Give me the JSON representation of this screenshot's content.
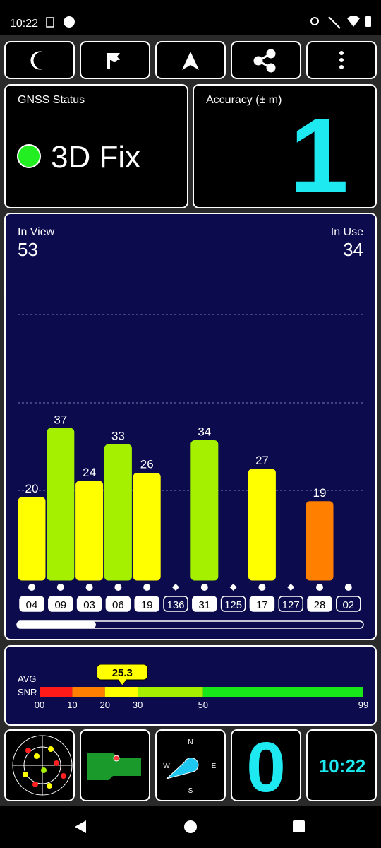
{
  "status_bar": {
    "time": "10:22"
  },
  "gnss_status": {
    "label": "GNSS Status",
    "fix": "3D Fix"
  },
  "accuracy": {
    "label": "Accuracy (± m)",
    "value": "1"
  },
  "satellites": {
    "in_view_label": "In View",
    "in_view": 53,
    "in_use_label": "In Use",
    "in_use": 34
  },
  "chart_data": {
    "type": "bar",
    "categories": [
      "04",
      "09",
      "03",
      "06",
      "19",
      "136",
      "31",
      "125",
      "17",
      "127",
      "28",
      "02"
    ],
    "values": [
      20,
      37,
      24,
      33,
      26,
      0,
      34,
      0,
      27,
      0,
      19,
      0
    ],
    "colors": [
      "#ffff00",
      "#a4f000",
      "#ffff00",
      "#a4f000",
      "#ffff00",
      "#ff2020",
      "#a4f000",
      "#ff2020",
      "#ffff00",
      "#ff2020",
      "#ff8000",
      "#ff2020"
    ],
    "shapes": [
      "circle",
      "circle",
      "circle",
      "circle",
      "circle",
      "diamond",
      "circle",
      "diamond",
      "circle",
      "diamond",
      "circle",
      "circle"
    ],
    "used": [
      true,
      true,
      true,
      true,
      true,
      false,
      true,
      false,
      true,
      false,
      true,
      false
    ],
    "ylim": [
      0,
      76
    ]
  },
  "snr": {
    "avg_label": "AVG",
    "snr_label": "SNR",
    "value": 25.3,
    "xlim": [
      0,
      99
    ],
    "ticks": [
      {
        "value": 0,
        "label": "00"
      },
      10,
      20,
      30,
      50,
      99
    ],
    "segments": [
      {
        "from": 0,
        "to": 10,
        "color": "#ff1a1a"
      },
      {
        "from": 10,
        "to": 20,
        "color": "#ff8000"
      },
      {
        "from": 20,
        "to": 30,
        "color": "#ffff00"
      },
      {
        "from": 30,
        "to": 50,
        "color": "#a4f000"
      },
      {
        "from": 50,
        "to": 99,
        "color": "#19e619"
      }
    ]
  },
  "tiles": {
    "compass": {
      "n": "N",
      "e": "E",
      "s": "S",
      "w": "W"
    },
    "speed": "0",
    "clock": "10:22"
  }
}
